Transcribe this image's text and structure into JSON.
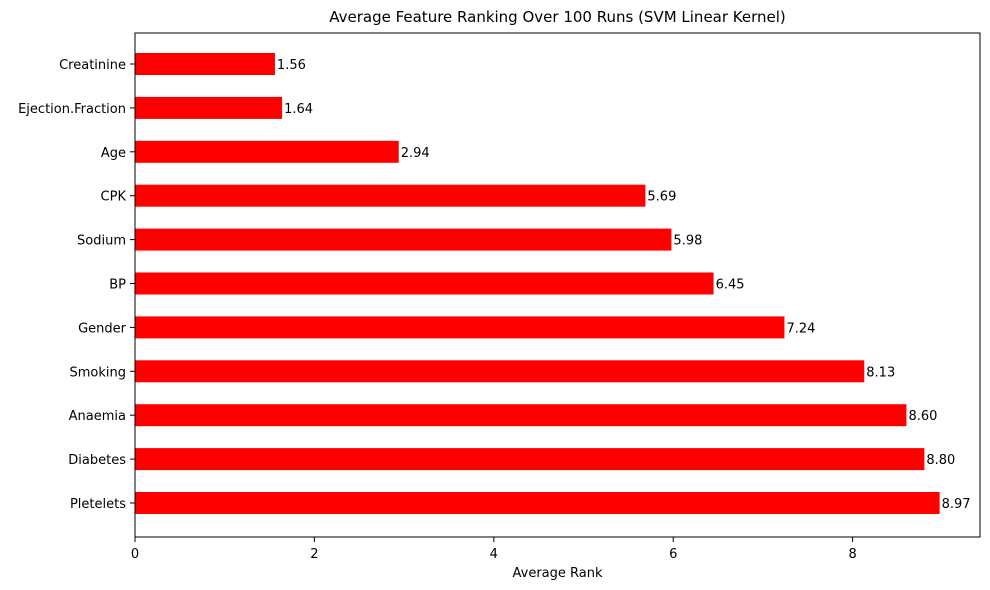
{
  "chart_data": {
    "type": "bar",
    "orientation": "horizontal",
    "title": "Average Feature Ranking Over 100 Runs (SVM Linear Kernel)",
    "xlabel": "Average Rank",
    "ylabel": "",
    "categories": [
      "Creatinine",
      "Ejection.Fraction",
      "Age",
      "CPK",
      "Sodium",
      "BP",
      "Gender",
      "Smoking",
      "Anaemia",
      "Diabetes",
      "Pletelets"
    ],
    "values": [
      1.56,
      1.64,
      2.94,
      5.69,
      5.98,
      6.45,
      7.24,
      8.13,
      8.6,
      8.8,
      8.97
    ],
    "data_labels": [
      "1.56",
      "1.64",
      "2.94",
      "5.69",
      "5.98",
      "6.45",
      "7.24",
      "8.13",
      "8.60",
      "8.80",
      "8.97"
    ],
    "xlim": [
      0,
      9.42
    ],
    "xticks": [
      0,
      2,
      4,
      6,
      8
    ],
    "xtick_labels": [
      "0",
      "2",
      "4",
      "6",
      "8"
    ],
    "bar_color": "#ff0000",
    "grid": false,
    "legend": "none"
  }
}
